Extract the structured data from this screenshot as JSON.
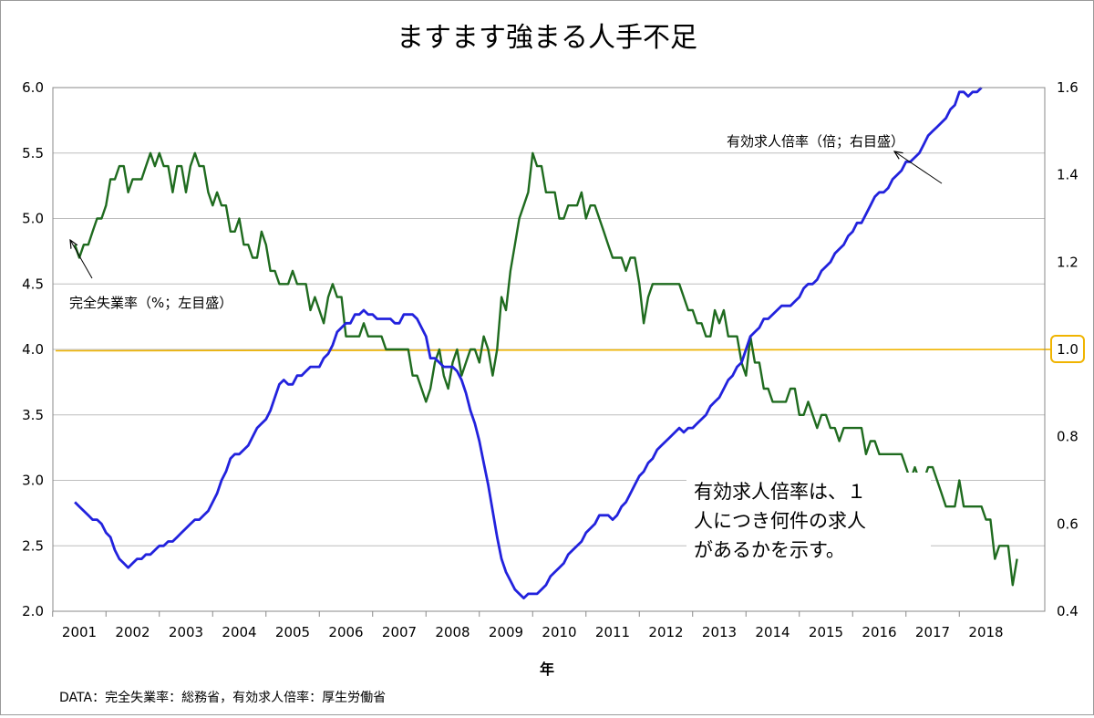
{
  "chart_data": {
    "type": "line",
    "title": "ますます強まる人手不足",
    "xlabel": "年",
    "x_ticks": [
      "2001",
      "2002",
      "2003",
      "2004",
      "2005",
      "2006",
      "2007",
      "2008",
      "2009",
      "2010",
      "2011",
      "2012",
      "2013",
      "2014",
      "2015",
      "2016",
      "2017",
      "2018"
    ],
    "y_left": {
      "lim": [
        2.0,
        6.0
      ],
      "ticks": [
        "2.0",
        "2.5",
        "3.0",
        "3.5",
        "4.0",
        "4.5",
        "5.0",
        "5.5",
        "6.0"
      ]
    },
    "y_right": {
      "lim": [
        0.4,
        1.6
      ],
      "ticks": [
        "0.4",
        "0.6",
        "0.8",
        "1.0",
        "1.2",
        "1.4",
        "1.6"
      ]
    },
    "reference_label": "1.0",
    "grid": true,
    "series": [
      {
        "name": "完全失業率（%；左目盛）",
        "axis": "left",
        "color": "#1f6b1f",
        "start": "2000-12",
        "values": [
          4.8,
          4.7,
          4.8,
          4.8,
          4.9,
          5.0,
          5.0,
          5.1,
          5.3,
          5.3,
          5.4,
          5.4,
          5.2,
          5.3,
          5.3,
          5.3,
          5.4,
          5.5,
          5.4,
          5.5,
          5.4,
          5.4,
          5.2,
          5.4,
          5.4,
          5.2,
          5.4,
          5.5,
          5.4,
          5.4,
          5.2,
          5.1,
          5.2,
          5.1,
          5.1,
          4.9,
          4.9,
          5.0,
          4.8,
          4.8,
          4.7,
          4.7,
          4.9,
          4.8,
          4.6,
          4.6,
          4.5,
          4.5,
          4.5,
          4.6,
          4.5,
          4.5,
          4.5,
          4.3,
          4.4,
          4.3,
          4.2,
          4.4,
          4.5,
          4.4,
          4.4,
          4.1,
          4.1,
          4.1,
          4.1,
          4.2,
          4.1,
          4.1,
          4.1,
          4.1,
          4.0,
          4.0,
          4.0,
          4.0,
          4.0,
          4.0,
          3.8,
          3.8,
          3.7,
          3.6,
          3.7,
          3.9,
          4.0,
          3.8,
          3.7,
          3.9,
          4.0,
          3.8,
          3.9,
          4.0,
          4.0,
          3.9,
          4.1,
          4.0,
          3.8,
          4.0,
          4.4,
          4.3,
          4.6,
          4.8,
          5.0,
          5.1,
          5.2,
          5.5,
          5.4,
          5.4,
          5.2,
          5.2,
          5.2,
          5.0,
          5.0,
          5.1,
          5.1,
          5.1,
          5.2,
          5.0,
          5.1,
          5.1,
          5.0,
          4.9,
          4.8,
          4.7,
          4.7,
          4.7,
          4.6,
          4.7,
          4.7,
          4.5,
          4.2,
          4.4,
          4.5,
          4.5,
          4.5,
          4.5,
          4.5,
          4.5,
          4.5,
          4.4,
          4.3,
          4.3,
          4.2,
          4.2,
          4.1,
          4.1,
          4.3,
          4.2,
          4.3,
          4.1,
          4.1,
          4.1,
          3.9,
          3.8,
          4.1,
          3.9,
          3.9,
          3.7,
          3.7,
          3.6,
          3.6,
          3.6,
          3.6,
          3.7,
          3.7,
          3.5,
          3.5,
          3.6,
          3.5,
          3.4,
          3.5,
          3.5,
          3.4,
          3.4,
          3.3,
          3.4,
          3.4,
          3.4,
          3.4,
          3.4,
          3.2,
          3.3,
          3.3,
          3.2,
          3.2,
          3.2,
          3.2,
          3.2,
          3.2,
          3.1,
          3.0,
          3.1,
          3.0,
          3.0,
          3.1,
          3.1,
          3.0,
          2.9,
          2.8,
          2.8,
          2.8,
          3.0,
          2.8,
          2.8,
          2.8,
          2.8,
          2.8,
          2.7,
          2.7,
          2.4,
          2.5,
          2.5,
          2.5,
          2.2,
          2.4
        ]
      },
      {
        "name": "有効求人倍率（倍；右目盛）",
        "axis": "right",
        "color": "#2222dd",
        "start": "2000-12",
        "values": [
          0.65,
          0.64,
          0.63,
          0.62,
          0.61,
          0.61,
          0.6,
          0.58,
          0.57,
          0.54,
          0.52,
          0.51,
          0.5,
          0.51,
          0.52,
          0.52,
          0.53,
          0.53,
          0.54,
          0.55,
          0.55,
          0.56,
          0.56,
          0.57,
          0.58,
          0.59,
          0.6,
          0.61,
          0.61,
          0.62,
          0.63,
          0.65,
          0.67,
          0.7,
          0.72,
          0.75,
          0.76,
          0.76,
          0.77,
          0.78,
          0.8,
          0.82,
          0.83,
          0.84,
          0.86,
          0.89,
          0.92,
          0.93,
          0.92,
          0.92,
          0.94,
          0.94,
          0.95,
          0.96,
          0.96,
          0.96,
          0.98,
          0.99,
          1.01,
          1.04,
          1.05,
          1.06,
          1.06,
          1.08,
          1.08,
          1.09,
          1.08,
          1.08,
          1.07,
          1.07,
          1.07,
          1.07,
          1.06,
          1.06,
          1.08,
          1.08,
          1.08,
          1.07,
          1.05,
          1.03,
          0.98,
          0.98,
          0.97,
          0.96,
          0.96,
          0.96,
          0.95,
          0.93,
          0.9,
          0.86,
          0.83,
          0.79,
          0.74,
          0.69,
          0.63,
          0.57,
          0.52,
          0.49,
          0.47,
          0.45,
          0.44,
          0.43,
          0.44,
          0.44,
          0.44,
          0.45,
          0.46,
          0.48,
          0.49,
          0.5,
          0.51,
          0.53,
          0.54,
          0.55,
          0.56,
          0.58,
          0.59,
          0.6,
          0.62,
          0.62,
          0.62,
          0.61,
          0.62,
          0.64,
          0.65,
          0.67,
          0.69,
          0.71,
          0.72,
          0.74,
          0.75,
          0.77,
          0.78,
          0.79,
          0.8,
          0.81,
          0.82,
          0.81,
          0.82,
          0.82,
          0.83,
          0.84,
          0.85,
          0.87,
          0.88,
          0.89,
          0.91,
          0.93,
          0.94,
          0.96,
          0.97,
          1.0,
          1.03,
          1.04,
          1.05,
          1.07,
          1.07,
          1.08,
          1.09,
          1.1,
          1.1,
          1.1,
          1.11,
          1.12,
          1.14,
          1.15,
          1.15,
          1.16,
          1.18,
          1.19,
          1.2,
          1.22,
          1.23,
          1.24,
          1.26,
          1.27,
          1.29,
          1.29,
          1.31,
          1.33,
          1.35,
          1.36,
          1.36,
          1.37,
          1.39,
          1.4,
          1.41,
          1.43,
          1.43,
          1.44,
          1.45,
          1.47,
          1.49,
          1.5,
          1.51,
          1.52,
          1.53,
          1.55,
          1.56,
          1.59,
          1.59,
          1.58,
          1.59,
          1.59,
          1.6
        ]
      },
      {
        "name": "",
        "axis": "right",
        "color": "#f0b400",
        "values": [
          1.0,
          1.0
        ]
      }
    ],
    "annotations": {
      "unemp_label": "完全失業率（%；左目盛）",
      "ratio_label": "有効求人倍率（倍；右目盛）",
      "note_lines": [
        "有効求人倍率は、１",
        "人につき何件の求人",
        "があるかを示す。"
      ],
      "source": "DATA：完全失業率：総務省，有効求人倍率：厚生労働省"
    }
  }
}
